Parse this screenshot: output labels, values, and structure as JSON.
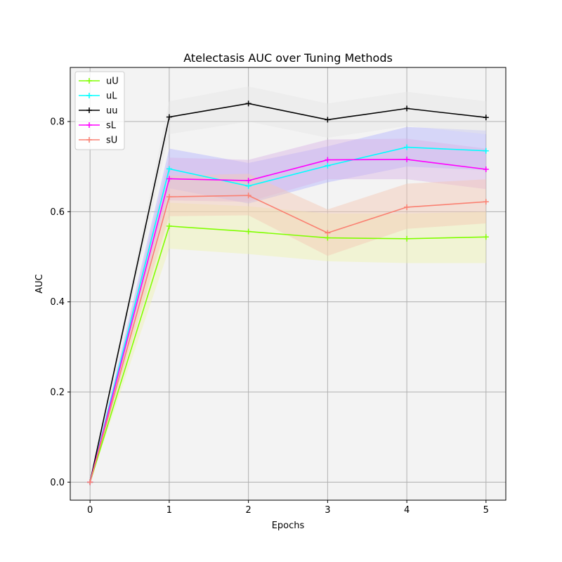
{
  "chart_data": {
    "type": "line",
    "title": "Atelectasis AUC over Tuning Methods",
    "xlabel": "Epochs",
    "ylabel": "AUC",
    "x": [
      0,
      1,
      2,
      3,
      4,
      5
    ],
    "xlim": [
      -0.25,
      5.25
    ],
    "ylim": [
      -0.04,
      0.92
    ],
    "xticks": [
      "0",
      "1",
      "2",
      "3",
      "4",
      "5"
    ],
    "yticks": [
      "0.0",
      "0.2",
      "0.4",
      "0.6",
      "0.8"
    ],
    "grid": true,
    "legend_position": "top-left",
    "background": "#f3f3f3",
    "series": [
      {
        "name": "uU",
        "color": "#80ff00",
        "band_color": "#f0f5b0",
        "values": [
          0.0,
          0.568,
          0.556,
          0.542,
          0.54,
          0.544
        ],
        "lower": [
          0.0,
          0.518,
          0.506,
          0.49,
          0.486,
          0.486
        ],
        "upper": [
          0.0,
          0.62,
          0.612,
          0.596,
          0.596,
          0.6
        ]
      },
      {
        "name": "uL",
        "color": "#00ffff",
        "band_color": "#b4b4ff",
        "values": [
          0.0,
          0.695,
          0.657,
          0.702,
          0.743,
          0.735
        ],
        "lower": [
          0.0,
          0.652,
          0.618,
          0.665,
          0.7,
          0.692
        ],
        "upper": [
          0.0,
          0.74,
          0.708,
          0.745,
          0.788,
          0.78
        ]
      },
      {
        "name": "uu",
        "color": "#000000",
        "band_color": "#e6e6e6",
        "values": [
          0.0,
          0.81,
          0.84,
          0.804,
          0.829,
          0.809
        ],
        "lower": [
          0.0,
          0.772,
          0.8,
          0.764,
          0.79,
          0.772
        ],
        "upper": [
          0.0,
          0.845,
          0.878,
          0.84,
          0.866,
          0.845
        ]
      },
      {
        "name": "sL",
        "color": "#ff00ff",
        "band_color": "#d9b4e6",
        "values": [
          0.0,
          0.673,
          0.669,
          0.715,
          0.716,
          0.694
        ],
        "lower": [
          0.0,
          0.625,
          0.622,
          0.672,
          0.672,
          0.65
        ],
        "upper": [
          0.0,
          0.72,
          0.715,
          0.76,
          0.762,
          0.74
        ]
      },
      {
        "name": "sU",
        "color": "#fa8072",
        "band_color": "#f5c8b4",
        "values": [
          0.0,
          0.633,
          0.636,
          0.553,
          0.61,
          0.622
        ],
        "lower": [
          0.0,
          0.59,
          0.592,
          0.502,
          0.562,
          0.574
        ],
        "upper": [
          0.0,
          0.68,
          0.684,
          0.605,
          0.662,
          0.672
        ]
      }
    ]
  }
}
